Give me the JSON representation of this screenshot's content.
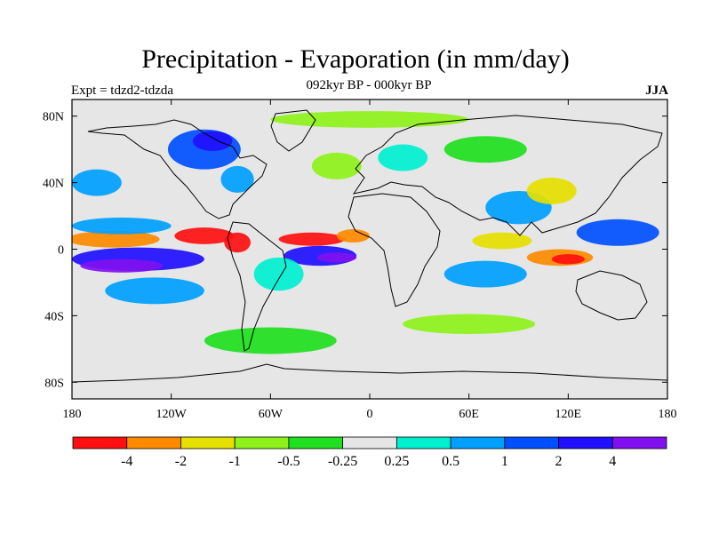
{
  "title": "Precipitation - Evaporation (in mm/day)",
  "subtitle": "092kyr BP - 000kyr BP",
  "experiment": "Expt = tdzd2-tdzda",
  "season": "JJA",
  "map": {
    "projection": "cylindrical-equidistant",
    "lon_range": [
      -180,
      180
    ],
    "lat_range": [
      -90,
      90
    ],
    "background_color": "#e6e6e6",
    "x_ticks": [
      {
        "value": -180,
        "label": "180"
      },
      {
        "value": -120,
        "label": "120W"
      },
      {
        "value": -60,
        "label": "60W"
      },
      {
        "value": 0,
        "label": "0"
      },
      {
        "value": 60,
        "label": "60E"
      },
      {
        "value": 120,
        "label": "120E"
      },
      {
        "value": 180,
        "label": "180"
      }
    ],
    "y_ticks": [
      {
        "value": 80,
        "label": "80N"
      },
      {
        "value": 40,
        "label": "40N"
      },
      {
        "value": 0,
        "label": "0"
      },
      {
        "value": -40,
        "label": "40S"
      },
      {
        "value": -80,
        "label": "80S"
      }
    ]
  },
  "colorbar": {
    "colors": [
      "#ff1010",
      "#ff8a00",
      "#e6e000",
      "#8ef21a",
      "#20e020",
      "#e6e6e6",
      "#00f0d0",
      "#00a0ff",
      "#0050ff",
      "#2010ff",
      "#8010f0"
    ],
    "levels": [
      -4,
      -2,
      -1,
      -0.5,
      -0.25,
      0.25,
      0.5,
      1,
      2,
      4
    ],
    "labels": [
      "-4",
      "-2",
      "-1",
      "-0.5",
      "-0.25",
      "0.25",
      "0.5",
      "1",
      "2",
      "4"
    ]
  },
  "anomaly_patches": [
    {
      "name": "central-pacific-dry-band",
      "lon": -155,
      "lat": 6,
      "rx": 28,
      "ry": 5,
      "color": "#ff8a00"
    },
    {
      "name": "east-pacific-itcz-dry",
      "lon": -100,
      "lat": 8,
      "rx": 18,
      "ry": 5,
      "color": "#ff1010"
    },
    {
      "name": "central-america-dry",
      "lon": -80,
      "lat": 4,
      "rx": 8,
      "ry": 6,
      "color": "#ff1010"
    },
    {
      "name": "north-pacific-wet-band",
      "lon": -150,
      "lat": 14,
      "rx": 30,
      "ry": 5,
      "color": "#00a0ff"
    },
    {
      "name": "south-pacific-wet-band",
      "lon": -140,
      "lat": -6,
      "rx": 40,
      "ry": 7,
      "color": "#2010ff"
    },
    {
      "name": "south-pacific-wet-core",
      "lon": -150,
      "lat": -10,
      "rx": 25,
      "ry": 4,
      "color": "#8010f0"
    },
    {
      "name": "subtropical-south-pacific-wet",
      "lon": -130,
      "lat": -25,
      "rx": 30,
      "ry": 8,
      "color": "#00a0ff"
    },
    {
      "name": "north-pacific-storm-track",
      "lon": -165,
      "lat": 40,
      "rx": 15,
      "ry": 8,
      "color": "#00a0ff"
    },
    {
      "name": "north-america-wet",
      "lon": -100,
      "lat": 60,
      "rx": 22,
      "ry": 12,
      "color": "#0050ff"
    },
    {
      "name": "canada-wet-core",
      "lon": -95,
      "lat": 65,
      "rx": 12,
      "ry": 6,
      "color": "#2010ff"
    },
    {
      "name": "east-us-wet",
      "lon": -80,
      "lat": 42,
      "rx": 10,
      "ry": 8,
      "color": "#00a0ff"
    },
    {
      "name": "atlantic-itcz-dry",
      "lon": -35,
      "lat": 6,
      "rx": 20,
      "ry": 4,
      "color": "#ff1010"
    },
    {
      "name": "west-africa-dry",
      "lon": -10,
      "lat": 8,
      "rx": 10,
      "ry": 4,
      "color": "#ff8a00"
    },
    {
      "name": "south-atlantic-wet",
      "lon": -30,
      "lat": -4,
      "rx": 22,
      "ry": 6,
      "color": "#2010ff"
    },
    {
      "name": "south-atlantic-wet-core",
      "lon": -20,
      "lat": -5,
      "rx": 12,
      "ry": 3,
      "color": "#8010f0"
    },
    {
      "name": "brazil-wet",
      "lon": -55,
      "lat": -15,
      "rx": 15,
      "ry": 10,
      "color": "#00f0d0"
    },
    {
      "name": "south-indian-ocean-wet",
      "lon": 70,
      "lat": -15,
      "rx": 25,
      "ry": 8,
      "color": "#00a0ff"
    },
    {
      "name": "indian-ocean-dry",
      "lon": 80,
      "lat": 5,
      "rx": 18,
      "ry": 5,
      "color": "#e6e000"
    },
    {
      "name": "south-asia-wet",
      "lon": 90,
      "lat": 25,
      "rx": 20,
      "ry": 10,
      "color": "#00a0ff"
    },
    {
      "name": "maritime-continent-dry",
      "lon": 115,
      "lat": -5,
      "rx": 20,
      "ry": 5,
      "color": "#ff8a00"
    },
    {
      "name": "indonesia-dry-core",
      "lon": 120,
      "lat": -6,
      "rx": 10,
      "ry": 3,
      "color": "#ff1010"
    },
    {
      "name": "west-pacific-wet",
      "lon": 150,
      "lat": 10,
      "rx": 25,
      "ry": 8,
      "color": "#0050ff"
    },
    {
      "name": "china-dry",
      "lon": 110,
      "lat": 35,
      "rx": 15,
      "ry": 8,
      "color": "#e6e000"
    },
    {
      "name": "siberia-wet",
      "lon": 70,
      "lat": 60,
      "rx": 25,
      "ry": 8,
      "color": "#20e020"
    },
    {
      "name": "europe-wet",
      "lon": 20,
      "lat": 55,
      "rx": 15,
      "ry": 8,
      "color": "#00f0d0"
    },
    {
      "name": "north-atlantic-dry",
      "lon": -20,
      "lat": 50,
      "rx": 15,
      "ry": 8,
      "color": "#8ef21a"
    },
    {
      "name": "southern-ocean-dry",
      "lon": -60,
      "lat": -55,
      "rx": 40,
      "ry": 8,
      "color": "#20e020"
    },
    {
      "name": "south-indian-dry",
      "lon": 60,
      "lat": -45,
      "rx": 40,
      "ry": 6,
      "color": "#8ef21a"
    },
    {
      "name": "arctic-dry",
      "lon": 0,
      "lat": 78,
      "rx": 60,
      "ry": 5,
      "color": "#8ef21a"
    }
  ]
}
